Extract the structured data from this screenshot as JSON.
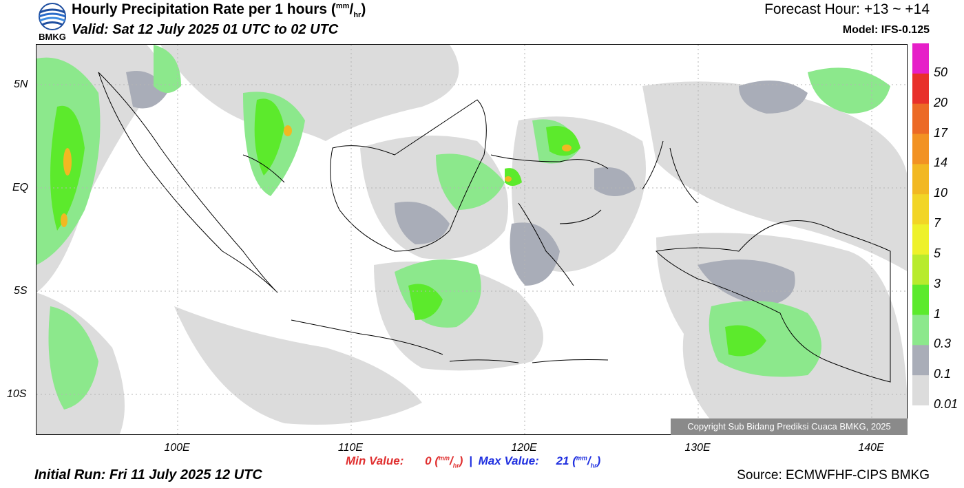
{
  "header": {
    "title_main": "Hourly Precipitation Rate per 1 hours (",
    "title_unit_num": "mm",
    "title_unit_sep": "/",
    "title_unit_den": "hr",
    "title_close": ")",
    "valid": "Valid: Sat 12 July 2025 01 UTC to 02 UTC",
    "forecast_hour": "Forecast Hour: +13 ~ +14",
    "model": "Model: IFS-0.125",
    "logo_text": "BMKG"
  },
  "map": {
    "lat_labels": [
      "5N",
      "EQ",
      "5S",
      "10S"
    ],
    "lon_labels": [
      "100E",
      "110E",
      "120E",
      "130E",
      "140E"
    ],
    "copyright": "Copyright Sub Bidang Prediksi Cuaca BMKG, 2025"
  },
  "colorbar": {
    "labels": [
      "50",
      "20",
      "17",
      "14",
      "10",
      "7",
      "5",
      "3",
      "1",
      "0.3",
      "0.1",
      "0.01"
    ],
    "colors": [
      "#e61fc8",
      "#e8302a",
      "#ec6a26",
      "#f29223",
      "#f2b822",
      "#f2d526",
      "#eef12a",
      "#b8eb2d",
      "#5cea2c",
      "#8ce88c",
      "#a9adb8",
      "#dcdcdc"
    ]
  },
  "footer": {
    "min_label": "Min Value:",
    "min_value": "0",
    "max_label": "Max Value:",
    "max_value": "21",
    "unit_num": "mm",
    "unit_sep": "/",
    "unit_den": "hr",
    "divider": "|",
    "initial_run": "Initial Run: Fri 11 July 2025 12 UTC",
    "source": "Source: ECMWFHF-CIPS BMKG"
  }
}
